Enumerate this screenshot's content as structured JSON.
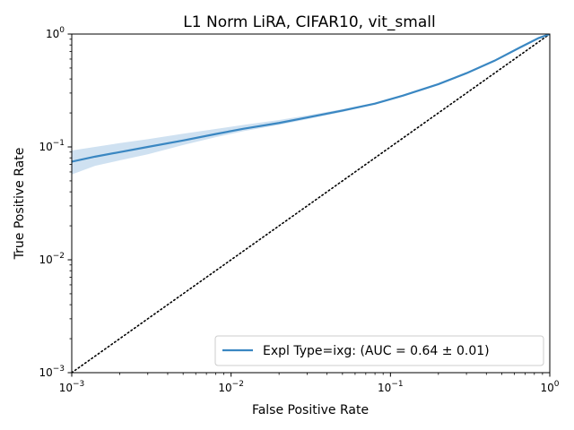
{
  "chart_data": {
    "type": "line",
    "title": "L1 Norm LiRA, CIFAR10, vit_small",
    "xlabel": "False Positive Rate",
    "ylabel": "True Positive Rate",
    "xscale": "log",
    "yscale": "log",
    "xlim": [
      0.001,
      1
    ],
    "ylim": [
      0.001,
      1
    ],
    "x_ticks": [
      {
        "value": 0.001,
        "base": "10",
        "exp": "−3"
      },
      {
        "value": 0.01,
        "base": "10",
        "exp": "−2"
      },
      {
        "value": 0.1,
        "base": "10",
        "exp": "−1"
      },
      {
        "value": 1,
        "base": "10",
        "exp": "0"
      }
    ],
    "y_ticks": [
      {
        "value": 0.001,
        "base": "10",
        "exp": "−3"
      },
      {
        "value": 0.01,
        "base": "10",
        "exp": "−2"
      },
      {
        "value": 0.1,
        "base": "10",
        "exp": "−1"
      },
      {
        "value": 1,
        "base": "10",
        "exp": "0"
      }
    ],
    "grid": false,
    "legend_position": "lower-right",
    "series": [
      {
        "name": "Expl Type=ixg: (AUC = 0.64 ± 0.01)",
        "color": "#3a87c2",
        "band_color": "#cfe1f1",
        "x": [
          0.001,
          0.0014,
          0.002,
          0.003,
          0.005,
          0.008,
          0.012,
          0.02,
          0.03,
          0.05,
          0.08,
          0.12,
          0.2,
          0.3,
          0.45,
          0.65,
          0.85,
          1.0
        ],
        "y": [
          0.074,
          0.082,
          0.09,
          0.1,
          0.114,
          0.13,
          0.145,
          0.163,
          0.182,
          0.21,
          0.242,
          0.285,
          0.36,
          0.45,
          0.58,
          0.76,
          0.92,
          1.0
        ],
        "lower": [
          0.057,
          0.068,
          0.076,
          0.086,
          0.104,
          0.122,
          0.138,
          0.157,
          0.176,
          0.204,
          0.238,
          0.281,
          0.355,
          0.445,
          0.575,
          0.755,
          0.915,
          1.0
        ],
        "upper": [
          0.093,
          0.1,
          0.108,
          0.117,
          0.131,
          0.144,
          0.157,
          0.173,
          0.19,
          0.216,
          0.247,
          0.29,
          0.365,
          0.455,
          0.585,
          0.765,
          0.925,
          1.0
        ]
      }
    ],
    "reference_line": {
      "x": [
        0.001,
        1
      ],
      "y": [
        0.001,
        1
      ],
      "style": "dotted",
      "color": "#000000"
    }
  }
}
